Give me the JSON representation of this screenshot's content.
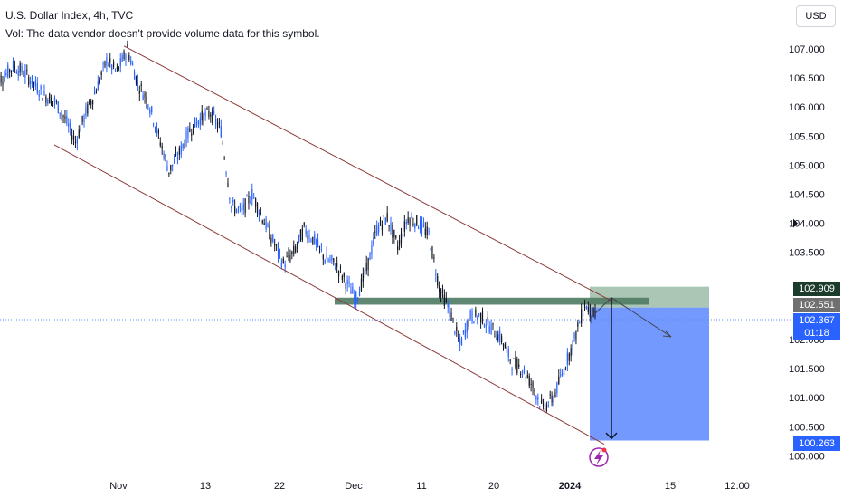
{
  "header": {
    "title": "U.S. Dollar Index, 4h, TVC",
    "volume_note": "Vol: The data vendor doesn't provide volume data for this symbol.",
    "currency": "USD"
  },
  "price_tags": {
    "target_top": "102.909",
    "entry": "102.551",
    "last_price": "102.367",
    "countdown": "01:18",
    "stop_bottom": "100.263"
  },
  "colors": {
    "up": "#2962ff",
    "down": "#131722",
    "channel": "#8b3a3a",
    "zone": "#4f7a62",
    "profit": "#5b87ff",
    "risk": "#8fb39c",
    "lightning": "#9c27b0"
  },
  "chart_data": {
    "type": "candlestick",
    "y_range": [
      99.9,
      107.4
    ],
    "y_ticks": [
      "107.000",
      "106.500",
      "106.000",
      "105.500",
      "105.000",
      "104.500",
      "104.000",
      "103.500",
      "102.000",
      "101.500",
      "101.000",
      "100.500",
      "100.000"
    ],
    "x_ticks": [
      "Nov",
      "13",
      "22",
      "Dec",
      "11",
      "20",
      "2024",
      "15",
      "12:00"
    ],
    "series_close": [
      106.5,
      106.7,
      106.6,
      106.4,
      106.2,
      106.1,
      105.8,
      105.4,
      105.9,
      106.3,
      106.8,
      106.6,
      107.0,
      106.4,
      106.1,
      105.5,
      104.9,
      105.2,
      105.6,
      105.8,
      105.9,
      105.6,
      104.3,
      104.2,
      104.5,
      104.1,
      103.7,
      103.3,
      103.5,
      103.9,
      103.7,
      103.4,
      103.3,
      103.0,
      102.7,
      103.2,
      103.9,
      104.1,
      103.6,
      104.1,
      104.0,
      103.8,
      102.9,
      102.5,
      101.9,
      102.4,
      102.4,
      102.2,
      102.0,
      101.6,
      101.5,
      101.2,
      100.8,
      101.0,
      101.5,
      102.0,
      102.6,
      102.4
    ],
    "channel": {
      "upper": {
        "start": 107.05,
        "end": 102.65
      },
      "lower": {
        "start": 105.35,
        "end": 100.2
      }
    },
    "resistance_zone": {
      "low": 102.6,
      "high": 102.72
    },
    "position": {
      "entry": 102.551,
      "target": 102.909,
      "stop": 100.263
    }
  }
}
